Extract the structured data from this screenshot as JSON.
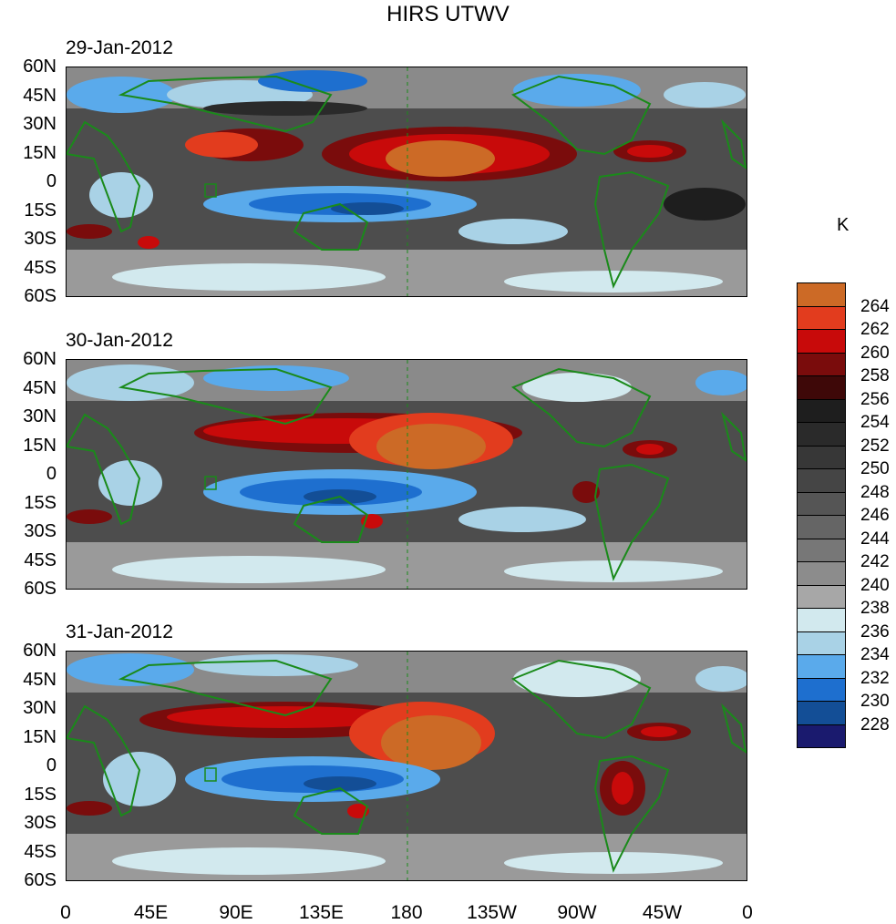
{
  "title": "HIRS UTWV",
  "units": "K",
  "panels": [
    {
      "date": "29-Jan-2012"
    },
    {
      "date": "30-Jan-2012"
    },
    {
      "date": "31-Jan-2012"
    }
  ],
  "lat_labels": [
    "60N",
    "45N",
    "30N",
    "15N",
    "0",
    "15S",
    "30S",
    "45S",
    "60S"
  ],
  "lon_labels": [
    "0",
    "45E",
    "90E",
    "135E",
    "180",
    "135W",
    "90W",
    "45W",
    "0"
  ],
  "colorbar": {
    "levels": [
      "264",
      "262",
      "260",
      "258",
      "256",
      "254",
      "252",
      "250",
      "248",
      "246",
      "244",
      "242",
      "240",
      "238",
      "236",
      "234",
      "232",
      "230",
      "228"
    ],
    "colors": [
      "#cc6a26",
      "#e23c1e",
      "#c80a0a",
      "#7a0c0c",
      "#3e0808",
      "#1e1e1e",
      "#2a2a2a",
      "#373737",
      "#454545",
      "#555555",
      "#656565",
      "#777777",
      "#8c8c8c",
      "#a7a7a7",
      "#d2e9ee",
      "#a9d2e6",
      "#5aaaeb",
      "#1e6fcf",
      "#134e96",
      "#1a1a6e"
    ]
  }
}
